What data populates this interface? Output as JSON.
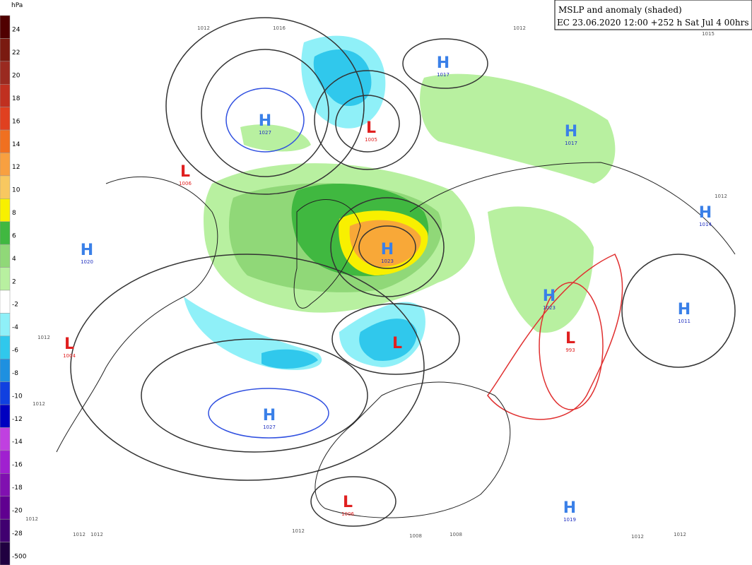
{
  "header": {
    "title": "MSLP and anomaly (shaded)",
    "subtitle": "EC 23.06.2020 12:00 +252 h Sat Jul 4 00hrs"
  },
  "colorbar": {
    "unit": "hPa",
    "labels": [
      24,
      22,
      20,
      18,
      16,
      14,
      12,
      10,
      8,
      6,
      4,
      2,
      -2,
      -4,
      -6,
      -8,
      -10,
      -12,
      -14,
      -16,
      -18,
      -20,
      -28,
      -500
    ]
  },
  "centers": [
    {
      "type": "H",
      "value": "1027"
    },
    {
      "type": "L",
      "value": "1005"
    },
    {
      "type": "H",
      "value": "1017"
    },
    {
      "type": "H",
      "value": "1017"
    },
    {
      "type": "L",
      "value": "1006"
    },
    {
      "type": "H",
      "value": "1023"
    },
    {
      "type": "H",
      "value": "1020"
    },
    {
      "type": "H",
      "value": "1014"
    },
    {
      "type": "H",
      "value": "1023"
    },
    {
      "type": "H",
      "value": "1011"
    },
    {
      "type": "L",
      "value": "1004"
    },
    {
      "type": "L"
    },
    {
      "type": "L",
      "value": "993"
    },
    {
      "type": "H",
      "value": "1027"
    },
    {
      "type": "L",
      "value": "1006"
    },
    {
      "type": "H",
      "value": "1019"
    }
  ],
  "isobar_labels": [
    "1012",
    "1016",
    "1012",
    "1015",
    "1012",
    "1012",
    "1012",
    "1012",
    "1012",
    "1012",
    "1008",
    "1008",
    "1012",
    "1012",
    "1012"
  ]
}
